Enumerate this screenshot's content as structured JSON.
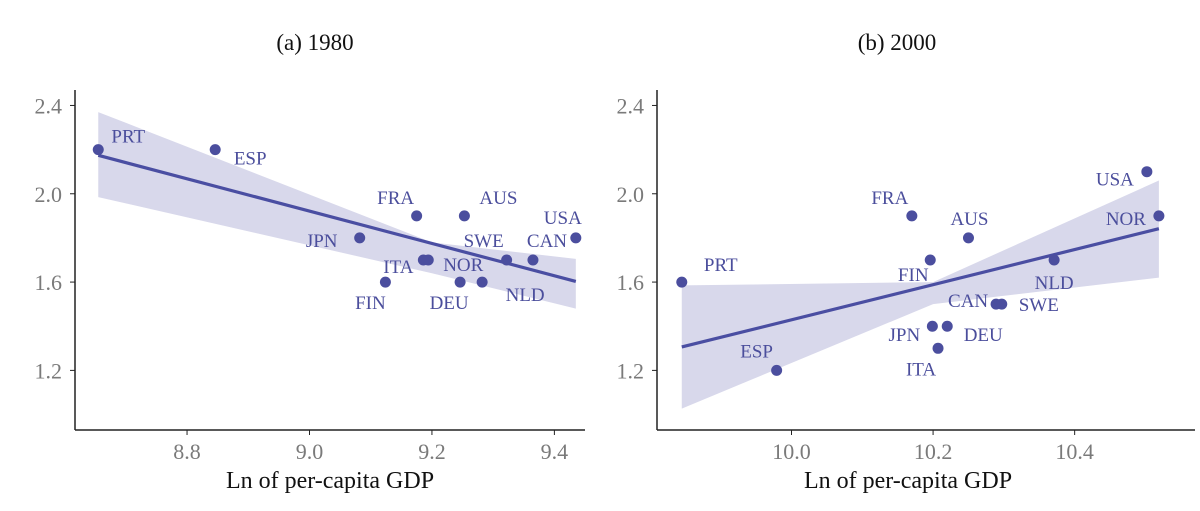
{
  "colors": {
    "point": "#4b4e9e",
    "line": "#4a4ea2",
    "band": "#d8d8eb",
    "axis": "#222222",
    "tick_label": "#7a7a7a"
  },
  "chart_data": [
    {
      "type": "scatter",
      "title": "(a) 1980",
      "xlabel": "Ln of per-capita GDP",
      "ylabel": "",
      "xlim": [
        8.617,
        9.45
      ],
      "ylim": [
        0.93,
        2.47
      ],
      "xticks": [
        "8.8",
        "9.0",
        "9.2",
        "9.4"
      ],
      "yticks": [
        "1.2",
        "1.6",
        "2.0",
        "2.4"
      ],
      "points": [
        {
          "label": "PRT",
          "x": 8.655,
          "y": 2.2
        },
        {
          "label": "ESP",
          "x": 8.846,
          "y": 2.2
        },
        {
          "label": "FRA",
          "x": 9.175,
          "y": 1.9
        },
        {
          "label": "AUS",
          "x": 9.253,
          "y": 1.9
        },
        {
          "label": "USA",
          "x": 9.435,
          "y": 1.8
        },
        {
          "label": "JPN",
          "x": 9.082,
          "y": 1.8
        },
        {
          "label": "SWE",
          "x": 9.322,
          "y": 1.7
        },
        {
          "label": "CAN",
          "x": 9.365,
          "y": 1.7
        },
        {
          "label": "ITA",
          "x": 9.186,
          "y": 1.7
        },
        {
          "label": "NOR",
          "x": 9.194,
          "y": 1.7
        },
        {
          "label": "FIN",
          "x": 9.124,
          "y": 1.6
        },
        {
          "label": "DEU",
          "x": 9.246,
          "y": 1.6
        },
        {
          "label": "NLD",
          "x": 9.282,
          "y": 1.6
        }
      ],
      "fit": {
        "x": [
          8.655,
          9.435
        ],
        "y": [
          2.174,
          1.603
        ]
      },
      "band": {
        "x": [
          8.655,
          9.2,
          9.435
        ],
        "upper": [
          2.37,
          1.78,
          1.705
        ],
        "lower": [
          1.985,
          1.64,
          1.48
        ]
      }
    },
    {
      "type": "scatter",
      "title": "(b) 2000",
      "xlabel": "Ln of per-capita GDP",
      "ylabel": "",
      "xlim": [
        9.81,
        10.57
      ],
      "ylim": [
        0.93,
        2.47
      ],
      "xticks": [
        "10.0",
        "10.2",
        "10.4"
      ],
      "yticks": [
        "1.2",
        "1.6",
        "2.0",
        "2.4"
      ],
      "points": [
        {
          "label": "PRT",
          "x": 9.845,
          "y": 1.6
        },
        {
          "label": "ESP",
          "x": 9.979,
          "y": 1.2
        },
        {
          "label": "FRA",
          "x": 10.17,
          "y": 1.9
        },
        {
          "label": "AUS",
          "x": 10.25,
          "y": 1.8
        },
        {
          "label": "FIN",
          "x": 10.196,
          "y": 1.7
        },
        {
          "label": "NLD",
          "x": 10.371,
          "y": 1.7
        },
        {
          "label": "CAN",
          "x": 10.289,
          "y": 1.5
        },
        {
          "label": "SWE",
          "x": 10.297,
          "y": 1.5
        },
        {
          "label": "JPN",
          "x": 10.199,
          "y": 1.4
        },
        {
          "label": "DEU",
          "x": 10.22,
          "y": 1.4
        },
        {
          "label": "ITA",
          "x": 10.207,
          "y": 1.3
        },
        {
          "label": "USA",
          "x": 10.502,
          "y": 2.1
        },
        {
          "label": "NOR",
          "x": 10.519,
          "y": 1.9
        }
      ],
      "fit": {
        "x": [
          9.845,
          10.519
        ],
        "y": [
          1.306,
          1.842
        ]
      },
      "band": {
        "x": [
          9.845,
          10.2,
          10.519
        ],
        "upper": [
          1.585,
          1.6,
          2.06
        ],
        "lower": [
          1.027,
          1.5,
          1.62
        ]
      }
    }
  ]
}
